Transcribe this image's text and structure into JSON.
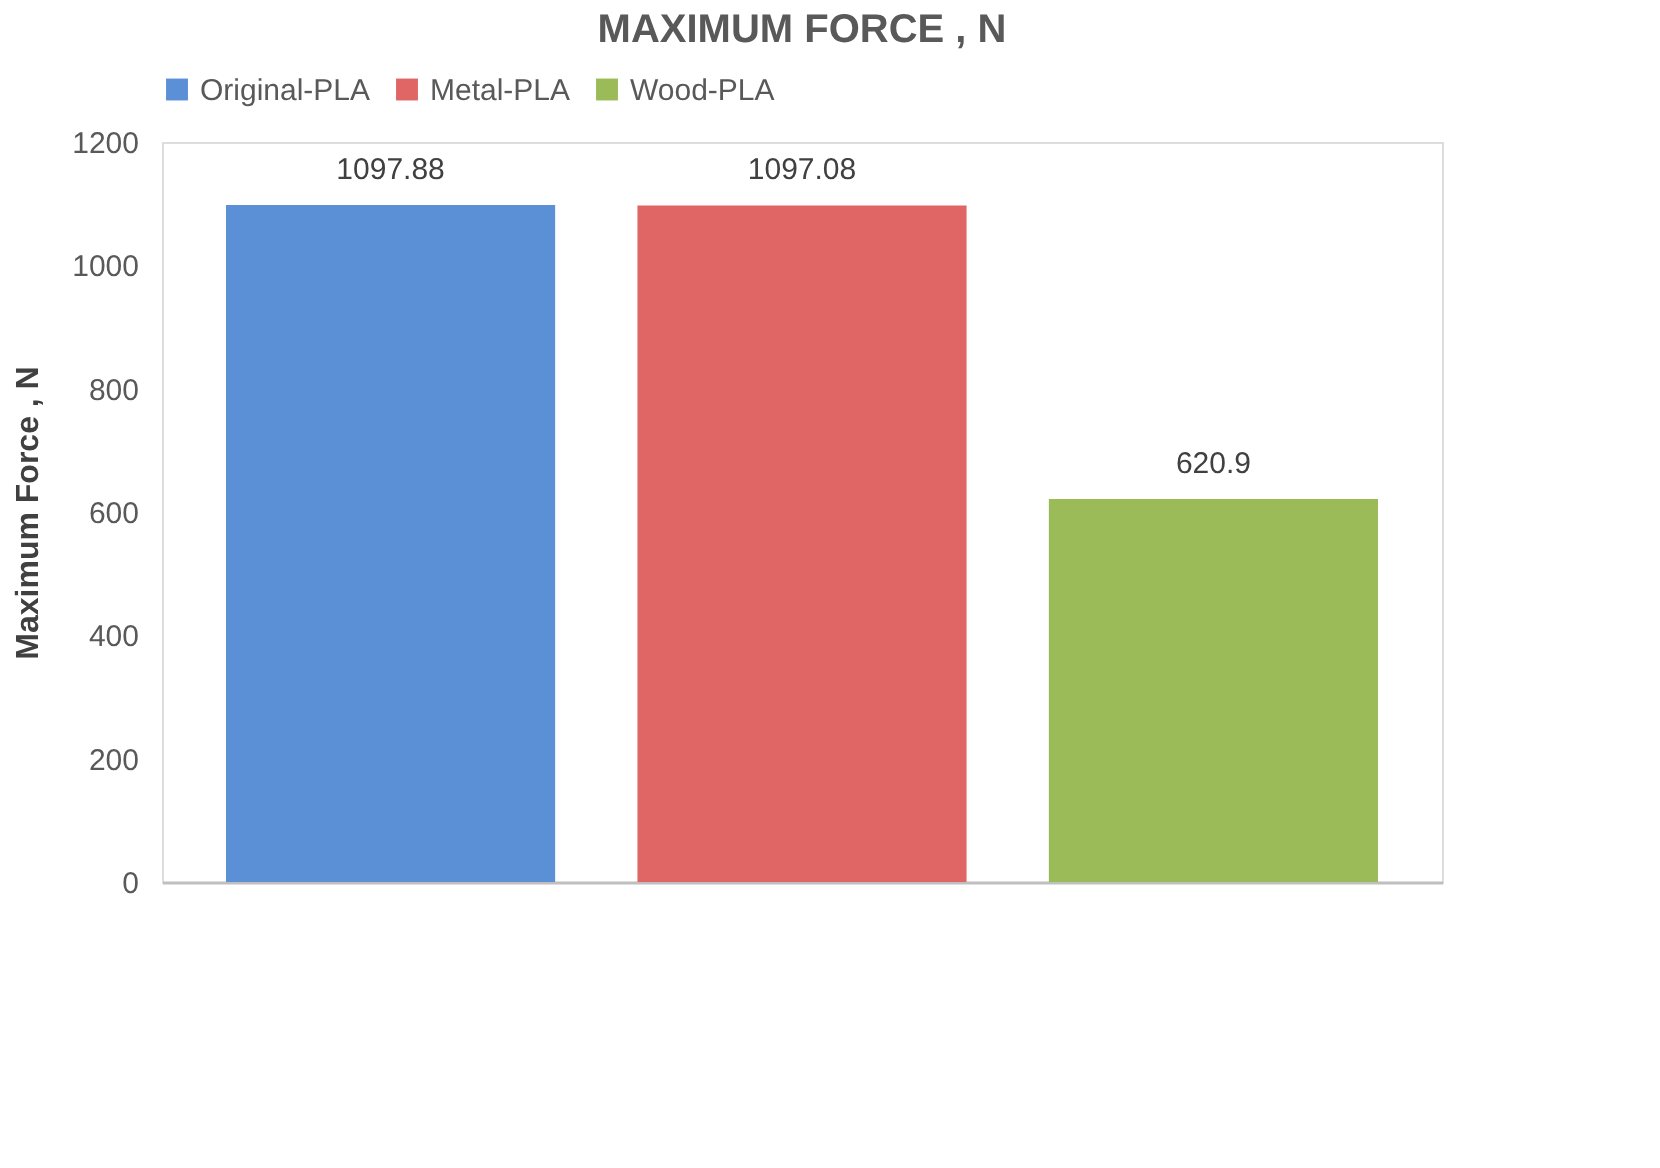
{
  "chart_data": {
    "type": "bar",
    "title": "MAXIMUM FORCE , N",
    "ylabel": "Maximum Force , N",
    "categories": [
      null
    ],
    "series": [
      {
        "name": "Original-PLA",
        "color": "#5b8fd6",
        "values": [
          1097.88
        ]
      },
      {
        "name": "Metal-PLA",
        "color": "#e06666",
        "values": [
          1097.08
        ]
      },
      {
        "name": "Wood-PLA",
        "color": "#9bbb59",
        "values": [
          620.9
        ]
      }
    ],
    "ylim": [
      0,
      1200
    ],
    "yticks": [
      0,
      200,
      400,
      600,
      800,
      1000,
      1200
    ],
    "data_labels": true,
    "legend": "top",
    "grid": false
  }
}
